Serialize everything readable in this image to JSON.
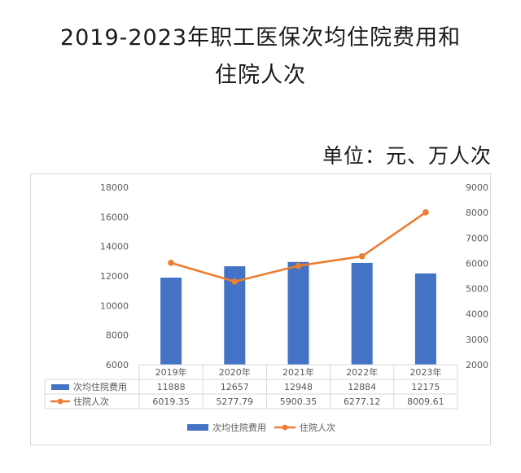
{
  "header": {
    "title_line1": "2019-2023年职工医保次均住院费用和",
    "title_line2": "住院人次",
    "unit": "单位：元、万人次"
  },
  "chart_data": {
    "type": "bar",
    "categories": [
      "2019年",
      "2020年",
      "2021年",
      "2022年",
      "2023年"
    ],
    "series": [
      {
        "name": "次均住院费用",
        "type": "bar",
        "axis": "left",
        "color": "#4472C4",
        "values": [
          11888,
          12657,
          12948,
          12884,
          12175
        ],
        "labels": [
          "11888",
          "12657",
          "12948",
          "12884",
          "12175"
        ]
      },
      {
        "name": "住院人次",
        "type": "line",
        "axis": "right",
        "color": "#ED7D31",
        "values": [
          6019.35,
          5277.79,
          5900.35,
          6277.12,
          8009.61
        ],
        "labels": [
          "6019.35",
          "5277.79",
          "5900.35",
          "6277.12",
          "8009.61"
        ]
      }
    ],
    "y_left": {
      "min": 6000,
      "max": 18000,
      "ticks": [
        "6000",
        "8000",
        "10000",
        "12000",
        "14000",
        "16000",
        "18000"
      ]
    },
    "y_right": {
      "min": 2000,
      "max": 9000,
      "ticks": [
        "2000",
        "3000",
        "4000",
        "5000",
        "6000",
        "7000",
        "8000",
        "9000"
      ]
    },
    "data_table": true,
    "legend_position": "bottom",
    "grid": false
  }
}
